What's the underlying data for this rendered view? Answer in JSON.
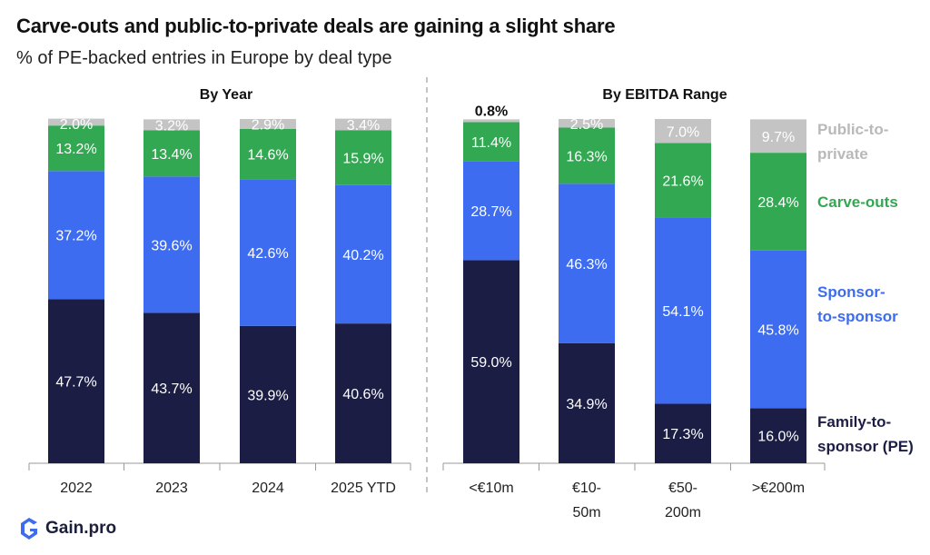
{
  "title": "Carve-outs and public-to-private deals are gaining a slight share",
  "subtitle": "% of PE-backed entries in Europe by deal type",
  "brand": {
    "name": "Gain.pro",
    "color": "#3d6cf0"
  },
  "colors": {
    "Family-to-sponsor (PE)": "#1b1d45",
    "Sponsor-to-sponsor": "#3d6cf0",
    "Carve-outs": "#33a852",
    "Public-to-private": "#c4c4c4"
  },
  "legend": [
    {
      "lines": [
        "Public-to-",
        "private"
      ],
      "color": "#b9b9b9"
    },
    {
      "lines": [
        "Carve-outs"
      ],
      "color": "#33a852"
    },
    {
      "lines": [
        "Sponsor-",
        "to-sponsor"
      ],
      "color": "#3d6cf0"
    },
    {
      "lines": [
        "Family-to-",
        "sponsor (PE)"
      ],
      "color": "#1b1d45"
    }
  ],
  "chart_data": [
    {
      "type": "bar",
      "stacked": true,
      "title": "By Year",
      "categories": [
        "2022",
        "2023",
        "2024",
        "2025 YTD"
      ],
      "series": [
        {
          "name": "Family-to-sponsor (PE)",
          "values": [
            47.7,
            43.7,
            39.9,
            40.6
          ]
        },
        {
          "name": "Sponsor-to-sponsor",
          "values": [
            37.2,
            39.6,
            42.6,
            40.2
          ]
        },
        {
          "name": "Carve-outs",
          "values": [
            13.2,
            13.4,
            14.6,
            15.9
          ]
        },
        {
          "name": "Public-to-private",
          "values": [
            2.0,
            3.2,
            2.9,
            3.4
          ]
        }
      ],
      "labels": [
        [
          "47.7%",
          "43.7%",
          "39.9%",
          "40.6%"
        ],
        [
          "37.2%",
          "39.6%",
          "42.6%",
          "40.2%"
        ],
        [
          "13.2%",
          "13.4%",
          "14.6%",
          "15.9%"
        ],
        [
          "2.0%",
          "3.2%",
          "2.9%",
          "3.4%"
        ]
      ],
      "ylim": [
        0,
        100
      ]
    },
    {
      "type": "bar",
      "stacked": true,
      "title": "By EBITDA Range",
      "categories": [
        [
          "<€10m"
        ],
        [
          "€10-",
          "50m"
        ],
        [
          "€50-",
          "200m"
        ],
        [
          ">€200m"
        ]
      ],
      "series": [
        {
          "name": "Family-to-sponsor (PE)",
          "values": [
            59.0,
            34.9,
            17.3,
            16.0
          ]
        },
        {
          "name": "Sponsor-to-sponsor",
          "values": [
            28.7,
            46.3,
            54.1,
            45.8
          ]
        },
        {
          "name": "Carve-outs",
          "values": [
            11.4,
            16.3,
            21.6,
            28.4
          ]
        },
        {
          "name": "Public-to-private",
          "values": [
            0.8,
            2.5,
            7.0,
            9.7
          ]
        }
      ],
      "labels": [
        [
          "59.0%",
          "34.9%",
          "17.3%",
          "16.0%"
        ],
        [
          "28.7%",
          "46.3%",
          "54.1%",
          "45.8%"
        ],
        [
          "11.4%",
          "16.3%",
          "21.6%",
          "28.4%"
        ],
        [
          "0.8%",
          "2.5%",
          "7.0%",
          "9.7%"
        ]
      ],
      "ylim": [
        0,
        100
      ]
    }
  ]
}
